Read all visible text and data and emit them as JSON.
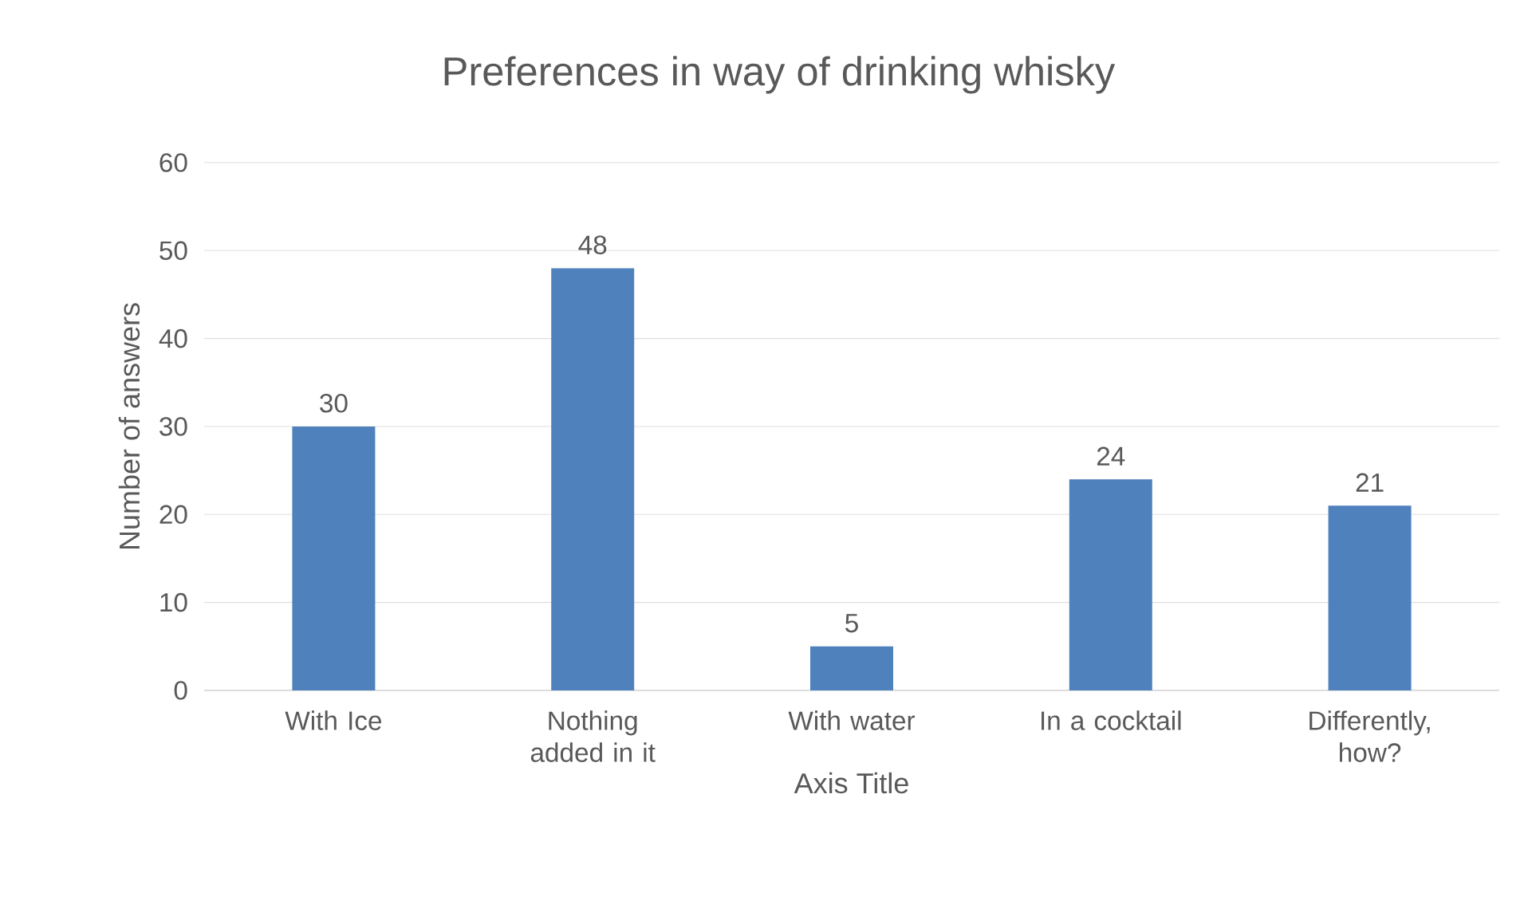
{
  "chart_data": {
    "type": "bar",
    "title": "Preferences in way of drinking whisky",
    "xlabel": "Axis Title",
    "ylabel": "Number of answers",
    "categories": [
      "With Ice",
      "Nothing added in it",
      "With water",
      "In a cocktail",
      "Differently, how?"
    ],
    "values": [
      30,
      48,
      5,
      24,
      21
    ],
    "color": "#4f81bd",
    "ylim": [
      0,
      60
    ],
    "yticks": [
      0,
      10,
      20,
      30,
      40,
      50,
      60
    ],
    "grid": "y",
    "data_labels": true
  }
}
